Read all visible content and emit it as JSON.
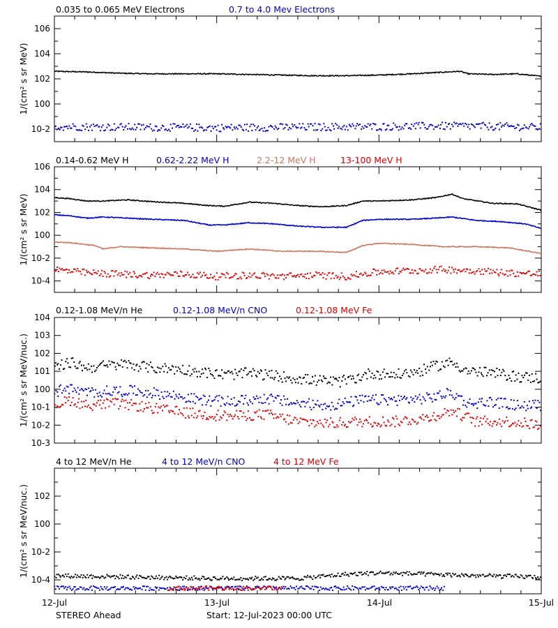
{
  "footer": {
    "spacecraft": "STEREO Ahead",
    "start": "Start: 12-Jul-2023 00:00 UTC"
  },
  "x_tick_labels": [
    "12-Jul",
    "13-Jul",
    "14-Jul",
    "15-Jul"
  ],
  "chart_data": [
    {
      "type": "scatter",
      "id": "electrons",
      "ylabel": "1/(cm² s sr MeV)",
      "yscale": "log",
      "ylim_exp": [
        -3,
        7
      ],
      "y_tick_exponents": [
        -2,
        0,
        2,
        4,
        6
      ],
      "y_tick_labels": [
        "10-2",
        "100",
        "102",
        "104",
        "106"
      ],
      "x_days": [
        0,
        3
      ],
      "series": [
        {
          "name": "0.035 to 0.065 MeV Electrons",
          "color": "#000000",
          "style": "line",
          "log10_points": [
            [
              0,
              2.6
            ],
            [
              0.2,
              2.55
            ],
            [
              0.4,
              2.45
            ],
            [
              0.6,
              2.4
            ],
            [
              0.8,
              2.4
            ],
            [
              1.0,
              2.4
            ],
            [
              1.2,
              2.35
            ],
            [
              1.4,
              2.3
            ],
            [
              1.6,
              2.25
            ],
            [
              1.8,
              2.25
            ],
            [
              2.0,
              2.3
            ],
            [
              2.2,
              2.4
            ],
            [
              2.35,
              2.5
            ],
            [
              2.5,
              2.6
            ],
            [
              2.55,
              2.4
            ],
            [
              2.7,
              2.35
            ],
            [
              2.85,
              2.4
            ],
            [
              3.0,
              2.2
            ]
          ]
        },
        {
          "name": "0.7 to 4.0 Mev Electrons",
          "color": "#0000cc",
          "style": "points",
          "log10_points": [
            [
              0,
              -1.8
            ],
            [
              0.5,
              -1.85
            ],
            [
              1.0,
              -1.9
            ],
            [
              1.5,
              -1.85
            ],
            [
              2.0,
              -1.8
            ],
            [
              2.5,
              -1.75
            ],
            [
              3.0,
              -1.85
            ]
          ]
        }
      ]
    },
    {
      "type": "scatter",
      "id": "protons",
      "ylabel": "1/(cm² s sr MeV)",
      "yscale": "log",
      "ylim_exp": [
        -5,
        6
      ],
      "y_tick_exponents": [
        -4,
        -2,
        0,
        2,
        4,
        6
      ],
      "y_tick_labels": [
        "10-4",
        "10-2",
        "100",
        "102",
        "104",
        "106"
      ],
      "x_days": [
        0,
        3
      ],
      "series": [
        {
          "name": "0.14-0.62 MeV H",
          "color": "#000000",
          "style": "line",
          "log10_points": [
            [
              0,
              3.3
            ],
            [
              0.1,
              3.2
            ],
            [
              0.2,
              3.0
            ],
            [
              0.3,
              3.0
            ],
            [
              0.45,
              3.1
            ],
            [
              0.6,
              2.95
            ],
            [
              0.8,
              2.8
            ],
            [
              0.95,
              2.6
            ],
            [
              1.05,
              2.55
            ],
            [
              1.2,
              2.9
            ],
            [
              1.35,
              2.8
            ],
            [
              1.5,
              2.6
            ],
            [
              1.65,
              2.5
            ],
            [
              1.8,
              2.6
            ],
            [
              1.9,
              3.0
            ],
            [
              2.0,
              3.0
            ],
            [
              2.2,
              3.1
            ],
            [
              2.35,
              3.3
            ],
            [
              2.45,
              3.6
            ],
            [
              2.52,
              3.2
            ],
            [
              2.7,
              2.8
            ],
            [
              2.85,
              2.75
            ],
            [
              3.0,
              2.2
            ]
          ]
        },
        {
          "name": "0.62-2.22 MeV H",
          "color": "#0000cc",
          "style": "line",
          "log10_points": [
            [
              0,
              1.8
            ],
            [
              0.1,
              1.7
            ],
            [
              0.2,
              1.5
            ],
            [
              0.3,
              1.6
            ],
            [
              0.45,
              1.5
            ],
            [
              0.6,
              1.4
            ],
            [
              0.8,
              1.3
            ],
            [
              0.95,
              0.9
            ],
            [
              1.05,
              0.9
            ],
            [
              1.2,
              1.1
            ],
            [
              1.35,
              1.0
            ],
            [
              1.5,
              0.8
            ],
            [
              1.65,
              0.7
            ],
            [
              1.8,
              0.7
            ],
            [
              1.9,
              1.3
            ],
            [
              2.0,
              1.4
            ],
            [
              2.2,
              1.4
            ],
            [
              2.35,
              1.5
            ],
            [
              2.45,
              1.6
            ],
            [
              2.6,
              1.3
            ],
            [
              2.75,
              1.2
            ],
            [
              2.9,
              1.0
            ],
            [
              3.0,
              0.6
            ]
          ]
        },
        {
          "name": "2.2-12 MeV H",
          "color": "#c87860",
          "style": "line",
          "log10_points": [
            [
              0,
              -0.6
            ],
            [
              0.1,
              -0.65
            ],
            [
              0.25,
              -0.9
            ],
            [
              0.3,
              -1.2
            ],
            [
              0.4,
              -1.0
            ],
            [
              0.6,
              -1.1
            ],
            [
              0.8,
              -1.2
            ],
            [
              1.0,
              -1.4
            ],
            [
              1.2,
              -1.2
            ],
            [
              1.4,
              -1.4
            ],
            [
              1.6,
              -1.4
            ],
            [
              1.8,
              -1.5
            ],
            [
              1.9,
              -0.9
            ],
            [
              2.0,
              -0.7
            ],
            [
              2.2,
              -0.8
            ],
            [
              2.4,
              -1.0
            ],
            [
              2.6,
              -1.0
            ],
            [
              2.8,
              -1.1
            ],
            [
              3.0,
              -1.6
            ]
          ]
        },
        {
          "name": "13-100 MeV H",
          "color": "#dd0000",
          "style": "points",
          "log10_points": [
            [
              0,
              -3.0
            ],
            [
              0.2,
              -3.3
            ],
            [
              0.4,
              -3.4
            ],
            [
              0.6,
              -3.5
            ],
            [
              0.8,
              -3.4
            ],
            [
              1.0,
              -3.6
            ],
            [
              1.2,
              -3.5
            ],
            [
              1.4,
              -3.6
            ],
            [
              1.6,
              -3.5
            ],
            [
              1.8,
              -3.6
            ],
            [
              2.0,
              -3.2
            ],
            [
              2.2,
              -3.1
            ],
            [
              2.4,
              -3.0
            ],
            [
              2.6,
              -3.1
            ],
            [
              2.8,
              -3.3
            ],
            [
              3.0,
              -3.4
            ]
          ]
        }
      ]
    },
    {
      "type": "scatter",
      "id": "heavy_low",
      "ylabel": "1/(cm² s sr MeV/nuc.)",
      "yscale": "log",
      "ylim_exp": [
        -3,
        4
      ],
      "y_tick_exponents": [
        -3,
        -2,
        -1,
        0,
        1,
        2,
        3,
        4
      ],
      "y_tick_labels": [
        "10-3",
        "10-2",
        "10-1",
        "100",
        "101",
        "102",
        "103",
        "104"
      ],
      "x_days": [
        0,
        3
      ],
      "series": [
        {
          "name": "0.12-1.08 MeV/n He",
          "color": "#000000",
          "style": "points",
          "log10_points": [
            [
              0,
              1.2
            ],
            [
              0.1,
              1.5
            ],
            [
              0.2,
              1.2
            ],
            [
              0.3,
              1.3
            ],
            [
              0.45,
              1.4
            ],
            [
              0.6,
              1.2
            ],
            [
              0.8,
              1.1
            ],
            [
              0.95,
              0.9
            ],
            [
              1.05,
              0.8
            ],
            [
              1.2,
              0.9
            ],
            [
              1.4,
              0.7
            ],
            [
              1.6,
              0.5
            ],
            [
              1.75,
              0.4
            ],
            [
              1.85,
              0.6
            ],
            [
              1.95,
              0.9
            ],
            [
              2.1,
              0.8
            ],
            [
              2.25,
              1.0
            ],
            [
              2.35,
              1.3
            ],
            [
              2.45,
              1.5
            ],
            [
              2.55,
              1.0
            ],
            [
              2.7,
              0.9
            ],
            [
              2.85,
              0.7
            ],
            [
              3.0,
              0.6
            ]
          ]
        },
        {
          "name": "0.12-1.08 MeV/n CNO",
          "color": "#0000cc",
          "style": "points",
          "log10_points": [
            [
              0,
              -0.4
            ],
            [
              0.05,
              0.1
            ],
            [
              0.2,
              -0.2
            ],
            [
              0.35,
              -0.1
            ],
            [
              0.5,
              -0.1
            ],
            [
              0.7,
              -0.3
            ],
            [
              0.9,
              -0.6
            ],
            [
              1.1,
              -0.7
            ],
            [
              1.3,
              -0.5
            ],
            [
              1.5,
              -0.8
            ],
            [
              1.7,
              -0.9
            ],
            [
              1.9,
              -0.6
            ],
            [
              2.1,
              -0.6
            ],
            [
              2.3,
              -0.5
            ],
            [
              2.45,
              -0.2
            ],
            [
              2.55,
              -0.8
            ],
            [
              2.7,
              -0.7
            ],
            [
              2.85,
              -0.9
            ],
            [
              3.0,
              -0.9
            ]
          ]
        },
        {
          "name": "0.12-1.08 MeV Fe",
          "color": "#dd0000",
          "style": "points",
          "log10_points": [
            [
              0,
              -0.9
            ],
            [
              0.1,
              -0.6
            ],
            [
              0.2,
              -0.9
            ],
            [
              0.35,
              -0.8
            ],
            [
              0.5,
              -0.9
            ],
            [
              0.7,
              -1.2
            ],
            [
              0.9,
              -1.4
            ],
            [
              1.1,
              -1.5
            ],
            [
              1.3,
              -1.4
            ],
            [
              1.5,
              -1.8
            ],
            [
              1.7,
              -1.9
            ],
            [
              1.9,
              -1.8
            ],
            [
              2.1,
              -1.8
            ],
            [
              2.3,
              -1.6
            ],
            [
              2.45,
              -1.2
            ],
            [
              2.6,
              -1.8
            ],
            [
              2.8,
              -1.8
            ],
            [
              3.0,
              -2.0
            ]
          ]
        }
      ]
    },
    {
      "type": "scatter",
      "id": "heavy_high",
      "ylabel": "1/(cm² s sr MeV/nuc.)",
      "yscale": "log",
      "ylim_exp": [
        -5,
        4
      ],
      "y_tick_exponents": [
        -4,
        -2,
        0,
        2
      ],
      "y_tick_labels": [
        "10-4",
        "10-2",
        "100",
        "102"
      ],
      "x_days": [
        0,
        3
      ],
      "series": [
        {
          "name": "4 to 12 MeV/n He",
          "color": "#000000",
          "style": "points",
          "log10_points": [
            [
              0,
              -3.7
            ],
            [
              0.5,
              -3.8
            ],
            [
              1.0,
              -3.9
            ],
            [
              1.5,
              -3.9
            ],
            [
              1.8,
              -3.6
            ],
            [
              2.0,
              -3.5
            ],
            [
              2.3,
              -3.6
            ],
            [
              2.6,
              -3.7
            ],
            [
              3.0,
              -3.8
            ]
          ]
        },
        {
          "name": "4 to 12 MeV/n CNO",
          "color": "#0000cc",
          "style": "points",
          "log10_points": [
            [
              0,
              -4.6
            ],
            [
              0.3,
              -4.6
            ],
            [
              1.5,
              -4.6
            ],
            [
              2.2,
              -4.6
            ],
            [
              2.4,
              -4.6
            ]
          ]
        },
        {
          "name": "4 to 12 MeV Fe",
          "color": "#dd0000",
          "style": "points",
          "log10_points": [
            [
              0.7,
              -4.6
            ],
            [
              0.95,
              -4.6
            ],
            [
              1.4,
              -4.6
            ]
          ]
        }
      ]
    }
  ]
}
